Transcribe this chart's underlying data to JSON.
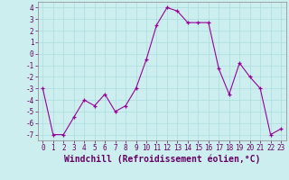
{
  "x": [
    0,
    1,
    2,
    3,
    4,
    5,
    6,
    7,
    8,
    9,
    10,
    11,
    12,
    13,
    14,
    15,
    16,
    17,
    18,
    19,
    20,
    21,
    22,
    23
  ],
  "y": [
    -3,
    -7,
    -7,
    -5.5,
    -4,
    -4.5,
    -3.5,
    -5,
    -4.5,
    -3,
    -0.5,
    2.5,
    4,
    3.7,
    2.7,
    2.7,
    2.7,
    -1.3,
    -3.5,
    -0.8,
    -2,
    -3,
    -7,
    -6.5
  ],
  "line_color": "#990099",
  "marker_color": "#990099",
  "bg_color": "#cceeee",
  "grid_color": "#aadddd",
  "title": "",
  "xlabel": "Windchill (Refroidissement éolien,°C)",
  "ylabel": "",
  "ylim": [
    -7.5,
    4.5
  ],
  "yticks": [
    4,
    3,
    2,
    1,
    0,
    -1,
    -2,
    -3,
    -4,
    -5,
    -6,
    -7
  ],
  "xticks": [
    0,
    1,
    2,
    3,
    4,
    5,
    6,
    7,
    8,
    9,
    10,
    11,
    12,
    13,
    14,
    15,
    16,
    17,
    18,
    19,
    20,
    21,
    22,
    23
  ],
  "tick_label_fontsize": 5.5,
  "xlabel_fontsize": 7.0,
  "axis_color": "#660066",
  "tick_color": "#660066",
  "spine_color": "#888888"
}
